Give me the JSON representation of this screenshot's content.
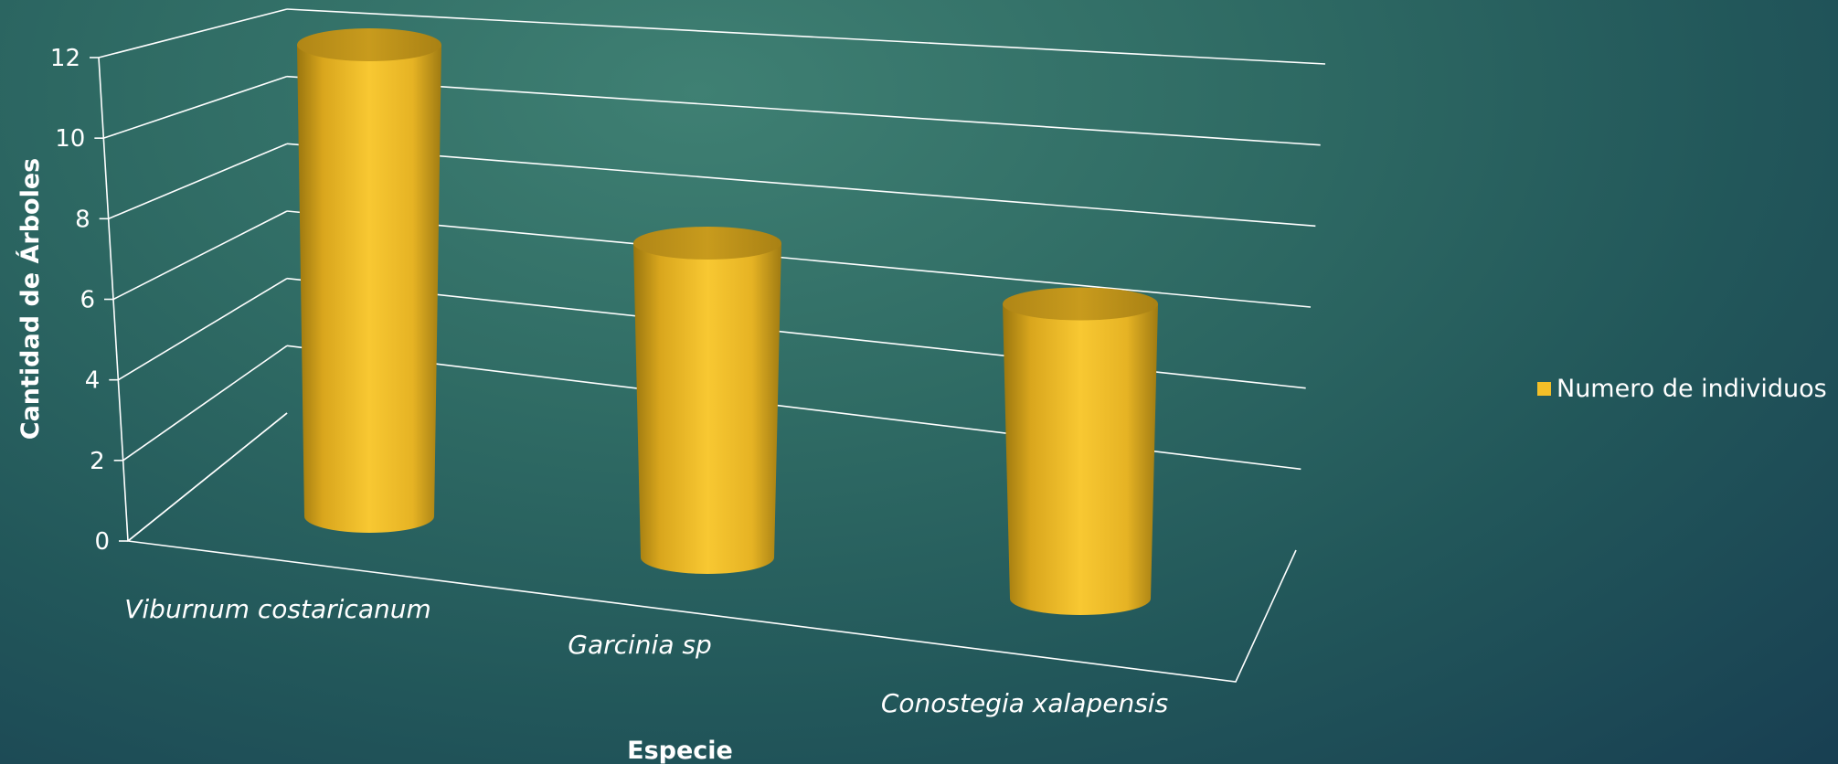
{
  "chart_data": {
    "type": "bar",
    "style": "3d-cylinder",
    "categories": [
      "Viburnum costaricanum",
      "Garcinia sp",
      "Conostegia xalapensis"
    ],
    "series": [
      {
        "name": "Numero de individuos",
        "values": [
          12,
          8,
          7.5
        ],
        "color": "#f3bf28"
      }
    ],
    "ylabel": "Cantidad de Árboles",
    "xlabel": "Especie",
    "ylim": [
      0,
      12
    ],
    "yticks": [
      "0",
      "2",
      "4",
      "6",
      "8",
      "10",
      "12"
    ],
    "grid": true,
    "legend_position": "right"
  }
}
